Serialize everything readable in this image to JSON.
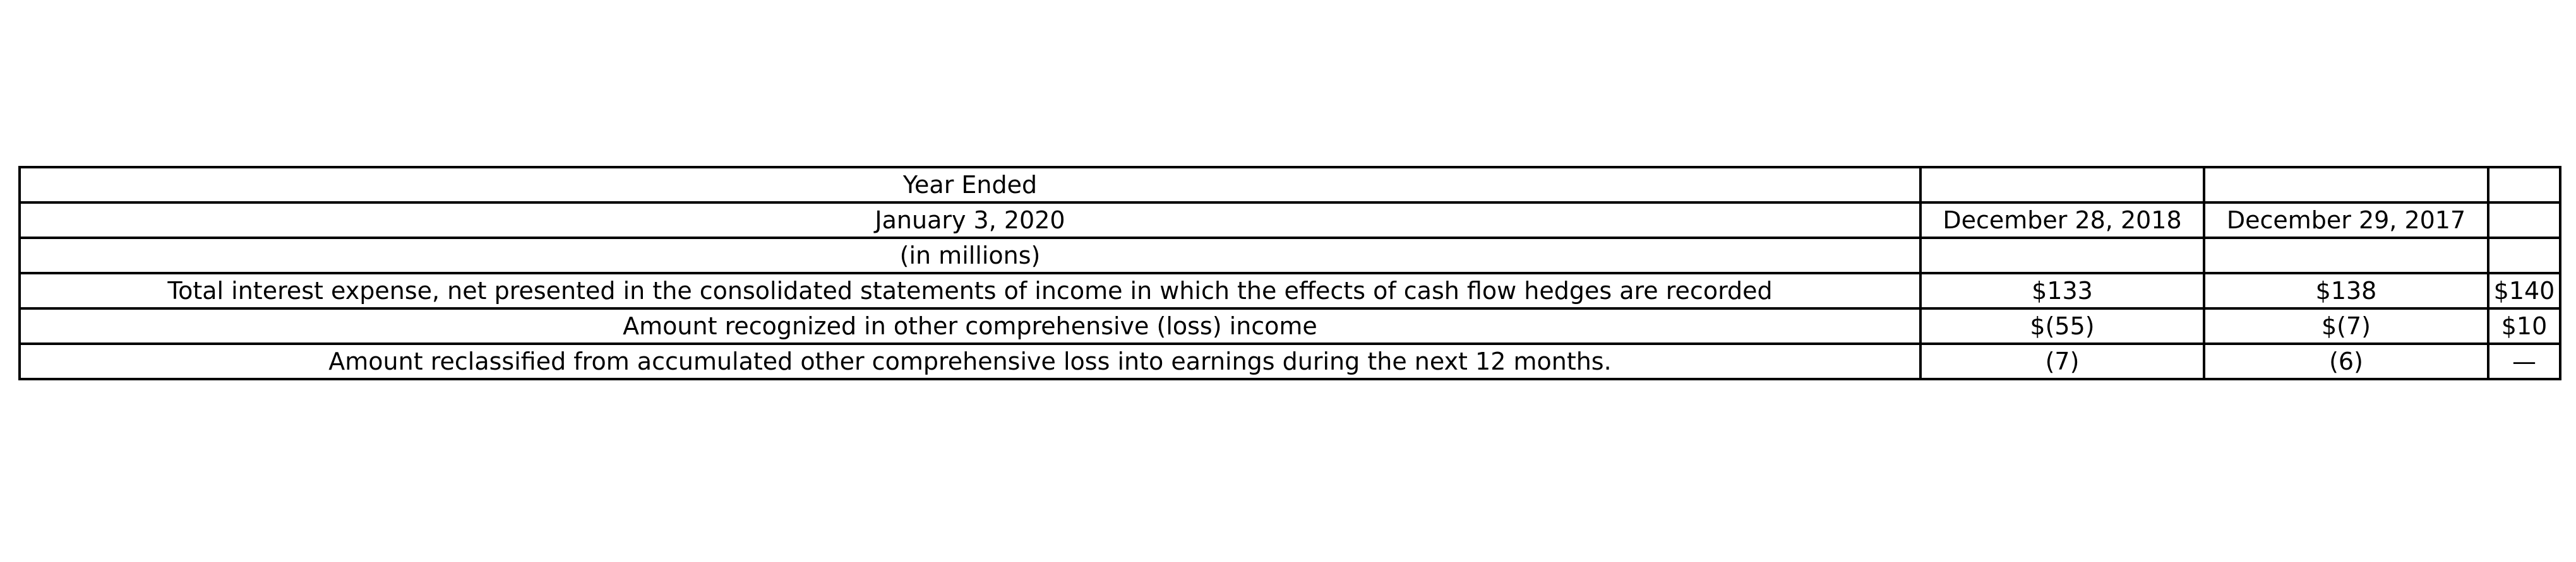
{
  "table": {
    "rows": [
      [
        "Year Ended",
        "",
        "",
        ""
      ],
      [
        "January 3, 2020",
        "December 28, 2018",
        "December 29, 2017",
        ""
      ],
      [
        "(in millions)",
        "",
        "",
        ""
      ],
      [
        "Total interest expense, net presented in the consolidated statements of income in which the effects of cash flow hedges are recorded",
        "$133",
        "$138",
        "$140"
      ],
      [
        "Amount recognized in other comprehensive (loss) income",
        "$(55)",
        "$(7)",
        "$10"
      ],
      [
        "Amount reclassified from accumulated other comprehensive loss into earnings during the next 12 months.",
        "(7)",
        "(6)",
        "—"
      ]
    ]
  }
}
